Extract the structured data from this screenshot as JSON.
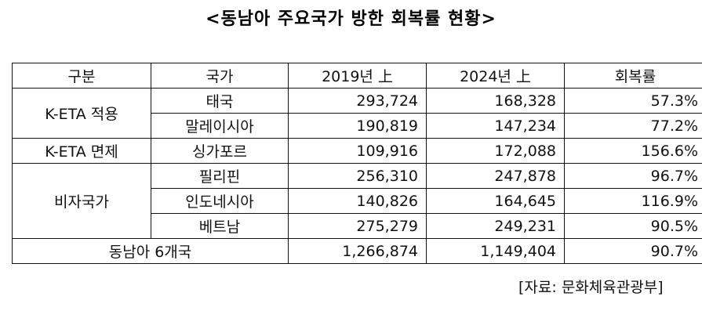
{
  "title": "<동남아 주요국가 방한 회복률 현황>",
  "table": {
    "headers": [
      "구분",
      "국가",
      "2019년 上",
      "2024년 上",
      "회복률"
    ],
    "groups": [
      {
        "category": "K-ETA 적용",
        "rows": [
          {
            "country": "태국",
            "y2019": "293,724",
            "y2024": "168,328",
            "rate": "57.3%"
          },
          {
            "country": "말레이시아",
            "y2019": "190,819",
            "y2024": "147,234",
            "rate": "77.2%"
          }
        ]
      },
      {
        "category": "K-ETA 면제",
        "rows": [
          {
            "country": "싱가포르",
            "y2019": "109,916",
            "y2024": "172,088",
            "rate": "156.6%"
          }
        ]
      },
      {
        "category": "비자국가",
        "rows": [
          {
            "country": "필리핀",
            "y2019": "256,310",
            "y2024": "247,878",
            "rate": "96.7%"
          },
          {
            "country": "인도네시아",
            "y2019": "140,826",
            "y2024": "164,645",
            "rate": "116.9%"
          },
          {
            "country": "베트남",
            "y2019": "275,279",
            "y2024": "249,231",
            "rate": "90.5%"
          }
        ]
      }
    ],
    "total": {
      "label": "동남아 6개국",
      "y2019": "1,266,874",
      "y2024": "1,149,404",
      "rate": "90.7%"
    }
  },
  "source": "[자료: 문화체육관광부]"
}
